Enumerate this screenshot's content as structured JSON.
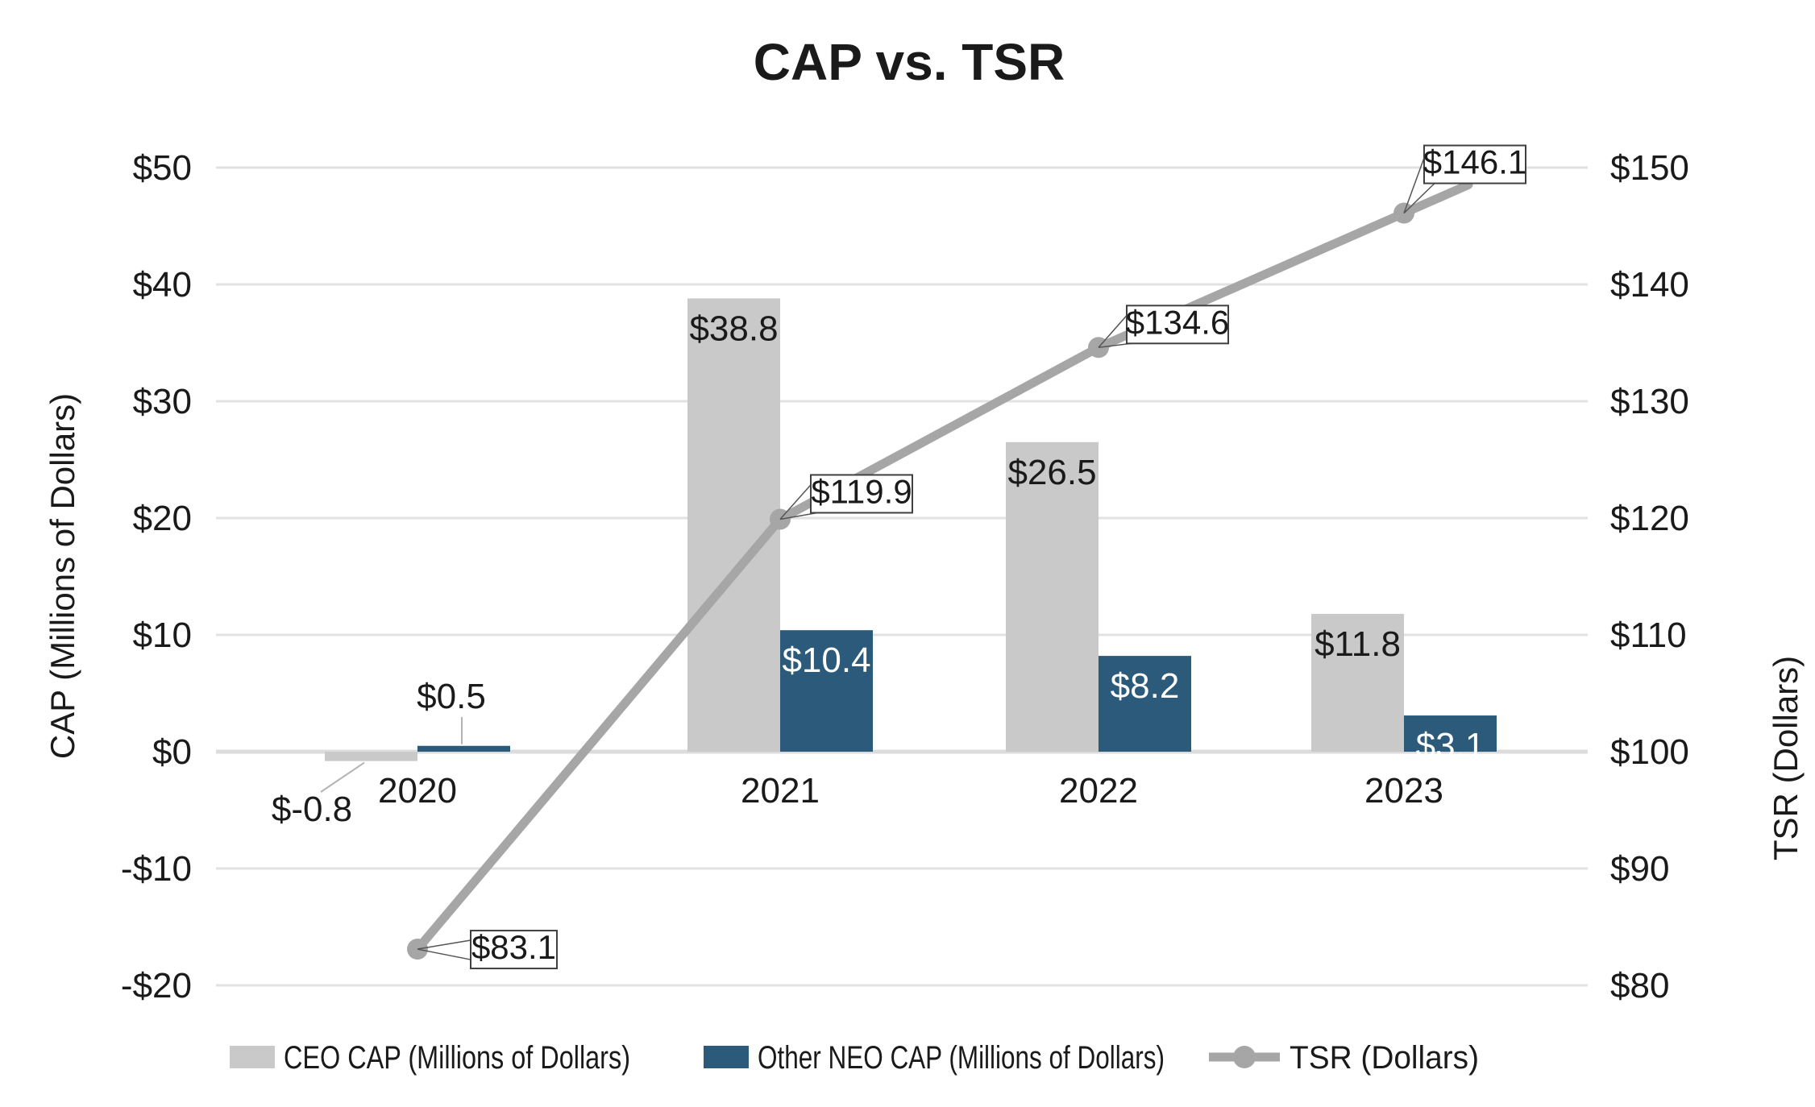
{
  "title": "CAP vs. TSR",
  "left_axis": {
    "title": "CAP (Millions of Dollars)",
    "tick_labels": [
      "$50",
      "$40",
      "$30",
      "$20",
      "$10",
      "$0",
      "-$10",
      "-$20"
    ]
  },
  "right_axis": {
    "title": "TSR (Dollars)",
    "tick_labels": [
      "$150",
      "$140",
      "$130",
      "$120",
      "$110",
      "$100",
      "$90",
      "$80"
    ]
  },
  "legend": {
    "items": [
      "CEO CAP (Millions of Dollars)",
      "Other NEO CAP (Millions of Dollars)",
      "TSR (Dollars)"
    ]
  },
  "colors": {
    "ceo_bar": "#c9c9c9",
    "neo_bar": "#2b5a7a",
    "tsr_line": "#a6a6a6",
    "gridline": "#e2e2e2",
    "zero_line": "#dcdcdc",
    "text": "#1a1a1a",
    "label_on_blue": "#ffffff",
    "callout_bg": "#ffffff",
    "callout_border": "#404040",
    "leader_line": "#b3b3b3"
  },
  "chart_data": {
    "type": "combo-bar-line",
    "title": "CAP vs. TSR",
    "categories": [
      "2020",
      "2021",
      "2022",
      "2023"
    ],
    "series": [
      {
        "name": "CEO CAP (Millions of Dollars)",
        "type": "bar",
        "axis": "left",
        "values": [
          -0.8,
          38.8,
          26.5,
          11.8
        ],
        "data_labels": [
          "$-0.8",
          "$38.8",
          "$26.5",
          "$11.8"
        ]
      },
      {
        "name": "Other NEO CAP (Millions of Dollars)",
        "type": "bar",
        "axis": "left",
        "values": [
          0.5,
          10.4,
          8.2,
          3.1
        ],
        "data_labels": [
          "$0.5",
          "$10.4",
          "$8.2",
          "$3.1"
        ]
      },
      {
        "name": "TSR (Dollars)",
        "type": "line",
        "axis": "right",
        "values": [
          83.1,
          119.9,
          134.6,
          146.1
        ],
        "data_labels": [
          "$83.1",
          "$119.9",
          "$134.6",
          "$146.1"
        ]
      }
    ],
    "ylabel_left": "CAP (Millions of Dollars)",
    "ylabel_right": "TSR (Dollars)",
    "left_ylim": [
      -20,
      50
    ],
    "right_ylim": [
      80,
      150
    ],
    "left_tick_step": 10,
    "right_tick_step": 10,
    "grid": true,
    "legend_position": "bottom"
  }
}
